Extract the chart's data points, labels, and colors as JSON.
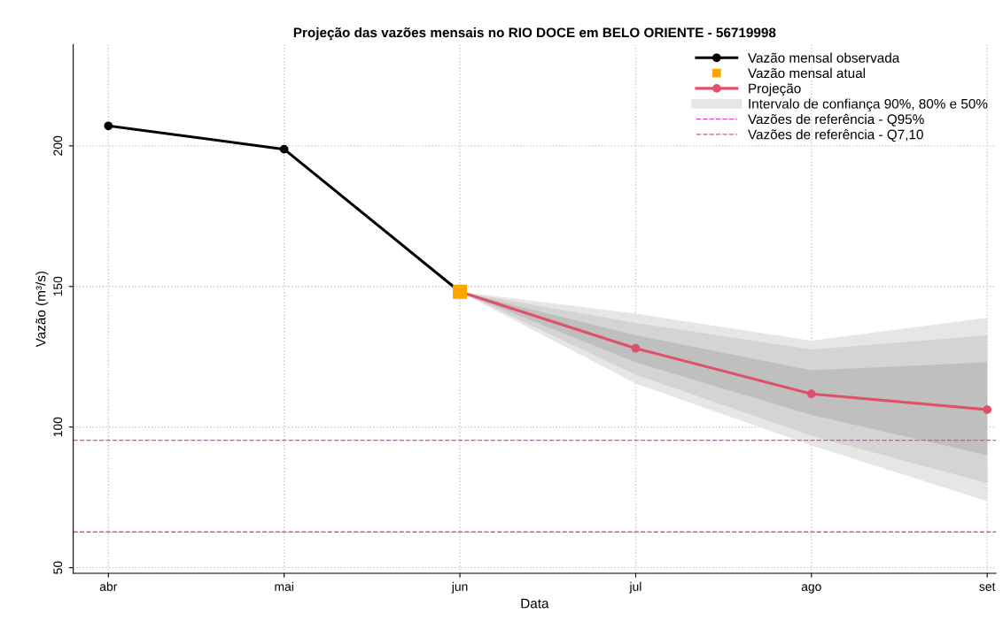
{
  "chart_data": {
    "type": "line",
    "title": "Projeção das vazões mensais no RIO DOCE em BELO ORIENTE - 56719998",
    "xlabel": "Data",
    "ylabel": "Vazão (m³/s)",
    "categories": [
      "abr",
      "mai",
      "jun",
      "jul",
      "ago",
      "set"
    ],
    "series": [
      {
        "name": "Vazão mensal observada",
        "color": "#000000",
        "marker": "circle",
        "values": [
          207.1,
          198.8,
          148.1,
          null,
          null,
          null
        ]
      },
      {
        "name": "Vazão mensal atual",
        "type": "scatter",
        "color": "#ffa500",
        "marker": "square",
        "values": [
          null,
          null,
          148.1,
          null,
          null,
          null
        ]
      },
      {
        "name": "Projeção",
        "color": "#e0506a",
        "marker": "circle",
        "values": [
          null,
          null,
          148.1,
          128.0,
          111.8,
          106.2
        ]
      },
      {
        "name": "Intervalo de confiança 90%, 80% e 50%",
        "type": "area",
        "color": "#e6e6e6",
        "values": [
          null,
          null,
          null,
          null,
          null,
          null
        ],
        "lower": [
          null,
          null,
          148.1,
          115.5,
          93.5,
          73.6
        ],
        "upper": [
          null,
          null,
          148.1,
          140.3,
          130.7,
          138.8
        ]
      },
      {
        "type": "area",
        "color": "#d4d4d4",
        "values": [
          null,
          null,
          null,
          null,
          null,
          null
        ],
        "lower": [
          null,
          null,
          148.1,
          118.6,
          96.9,
          80.1
        ],
        "upper": [
          null,
          null,
          148.1,
          137.0,
          127.6,
          132.6
        ]
      },
      {
        "type": "area",
        "color": "#bfbfbf",
        "values": [
          null,
          null,
          null,
          null,
          null,
          null
        ],
        "lower": [
          null,
          null,
          148.1,
          123.0,
          104.3,
          90.0
        ],
        "upper": [
          null,
          null,
          148.1,
          132.6,
          120.2,
          123.0
        ]
      }
    ],
    "ref_lines": [
      {
        "axis": "y",
        "value": 95.3,
        "label": "Vazões de referência - Q95%",
        "color": "#e040e0",
        "line_style": "dashed"
      },
      {
        "axis": "y",
        "value": 62.7,
        "label": "Vazões de referência - Q7,10",
        "color": "#f05070",
        "line_style": "dashed"
      }
    ],
    "ylim": [
      48,
      236
    ],
    "yticks": [
      50,
      100,
      150,
      200
    ],
    "grid": true,
    "legend": "top right"
  }
}
